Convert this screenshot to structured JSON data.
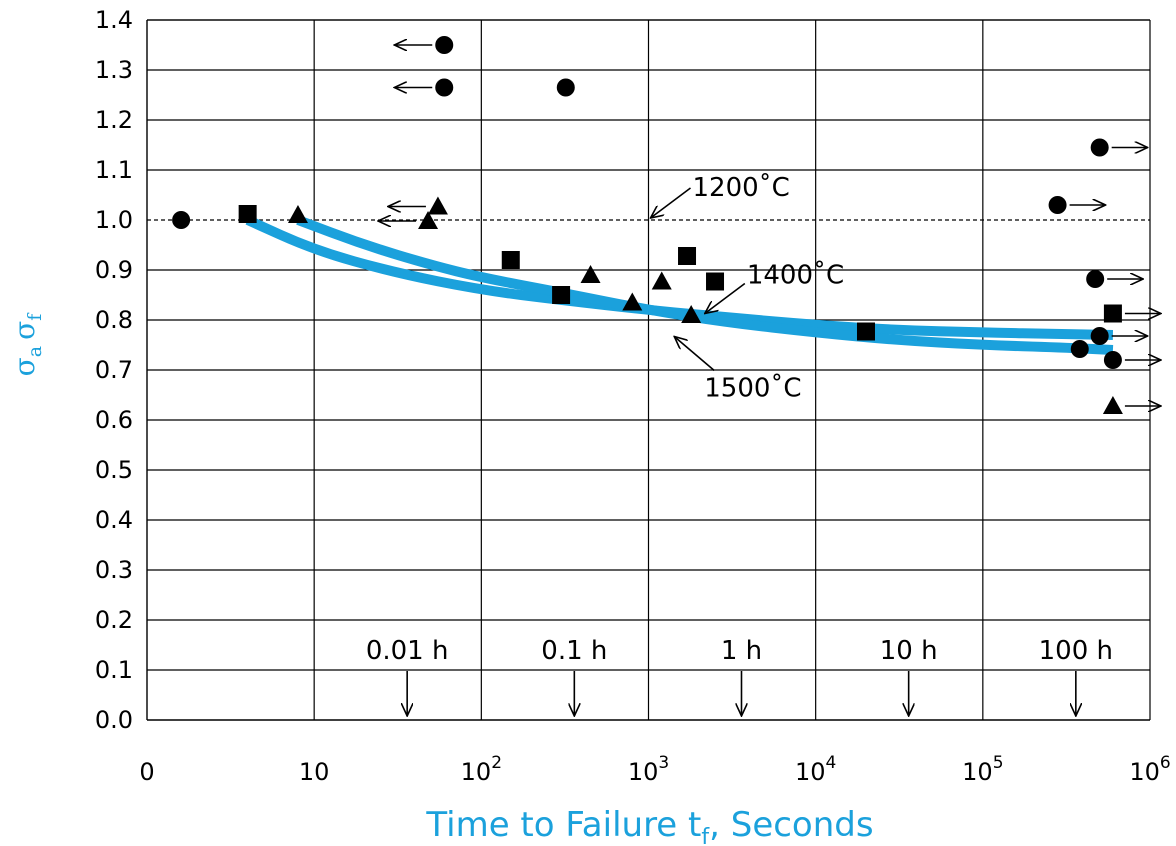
{
  "chart_data": {
    "type": "scatter",
    "title": "",
    "xlabel": {
      "main": "Time to Failure t",
      "sub": "f",
      "tail": ", Seconds"
    },
    "ylabel": {
      "sym1": "σ",
      "sub1": "a",
      "sym2": "σ",
      "sub2": "f"
    },
    "xscale": "log",
    "xlim": [
      1,
      1000000
    ],
    "ylim": [
      0.0,
      1.4
    ],
    "grid": true,
    "x_ticks": [
      {
        "value": 1,
        "base": "0",
        "exp": ""
      },
      {
        "value": 10,
        "base": "10",
        "exp": ""
      },
      {
        "value": 100,
        "base": "10",
        "exp": "2"
      },
      {
        "value": 1000,
        "base": "10",
        "exp": "3"
      },
      {
        "value": 10000,
        "base": "10",
        "exp": "4"
      },
      {
        "value": 100000,
        "base": "10",
        "exp": "5"
      },
      {
        "value": 1000000,
        "base": "10",
        "exp": "6"
      }
    ],
    "y_ticks": [
      "0.0",
      "0.1",
      "0.2",
      "0.3",
      "0.4",
      "0.5",
      "0.6",
      "0.7",
      "0.8",
      "0.9",
      "1.0",
      "1.1",
      "1.2",
      "1.3",
      "1.4"
    ],
    "reference_line": {
      "y": 1.0,
      "style": "dashed",
      "label": "1200˚C",
      "label_target_x": 1000
    },
    "hour_markers": [
      {
        "label": "0.01 h",
        "x": 36
      },
      {
        "label": "0.1 h",
        "x": 360
      },
      {
        "label": "1 h",
        "x": 3600
      },
      {
        "label": "10 h",
        "x": 36000
      },
      {
        "label": "100 h",
        "x": 360000
      }
    ],
    "curves": [
      {
        "label": "1400˚C",
        "label_target_x": 2000,
        "color": "#1ba1dc",
        "points": [
          [
            4,
            1.0
          ],
          [
            10,
            0.94
          ],
          [
            30,
            0.895
          ],
          [
            100,
            0.86
          ],
          [
            300,
            0.84
          ],
          [
            1000,
            0.82
          ],
          [
            3000,
            0.805
          ],
          [
            10000,
            0.79
          ],
          [
            30000,
            0.78
          ],
          [
            100000,
            0.775
          ],
          [
            300000,
            0.772
          ],
          [
            600000,
            0.77
          ]
        ]
      },
      {
        "label": "1500˚C",
        "label_target_x": 3000,
        "color": "#1ba1dc",
        "points": [
          [
            8,
            1.0
          ],
          [
            20,
            0.95
          ],
          [
            50,
            0.91
          ],
          [
            100,
            0.885
          ],
          [
            300,
            0.855
          ],
          [
            1000,
            0.82
          ],
          [
            3000,
            0.795
          ],
          [
            10000,
            0.775
          ],
          [
            30000,
            0.76
          ],
          [
            100000,
            0.75
          ],
          [
            300000,
            0.745
          ],
          [
            600000,
            0.74
          ]
        ]
      }
    ],
    "series": [
      {
        "name": "",
        "marker": "circle",
        "points": [
          {
            "x": 1.6,
            "y": 1.0
          },
          {
            "x": 60,
            "y": 1.35,
            "arrow": "left"
          },
          {
            "x": 60,
            "y": 1.265,
            "arrow": "left"
          },
          {
            "x": 320,
            "y": 1.265
          },
          {
            "x": 500000,
            "y": 1.145,
            "arrow": "right"
          },
          {
            "x": 280000,
            "y": 1.03,
            "arrow": "right"
          },
          {
            "x": 470000,
            "y": 0.882,
            "arrow": "right"
          },
          {
            "x": 500000,
            "y": 0.768,
            "arrow": "right"
          },
          {
            "x": 380000,
            "y": 0.742
          },
          {
            "x": 600000,
            "y": 0.72,
            "arrow": "right"
          }
        ]
      },
      {
        "name": "",
        "marker": "square",
        "points": [
          {
            "x": 4,
            "y": 1.012
          },
          {
            "x": 150,
            "y": 0.92
          },
          {
            "x": 300,
            "y": 0.85
          },
          {
            "x": 1700,
            "y": 0.928
          },
          {
            "x": 2500,
            "y": 0.877
          },
          {
            "x": 20000,
            "y": 0.777
          },
          {
            "x": 600000,
            "y": 0.813,
            "arrow": "right"
          }
        ]
      },
      {
        "name": "",
        "marker": "triangle",
        "points": [
          {
            "x": 8,
            "y": 1.01
          },
          {
            "x": 55,
            "y": 1.027,
            "arrow": "left"
          },
          {
            "x": 48,
            "y": 0.998,
            "arrow": "left"
          },
          {
            "x": 450,
            "y": 0.89
          },
          {
            "x": 800,
            "y": 0.835
          },
          {
            "x": 1200,
            "y": 0.877
          },
          {
            "x": 1800,
            "y": 0.81
          },
          {
            "x": 600000,
            "y": 0.628,
            "arrow": "right"
          }
        ]
      }
    ]
  }
}
